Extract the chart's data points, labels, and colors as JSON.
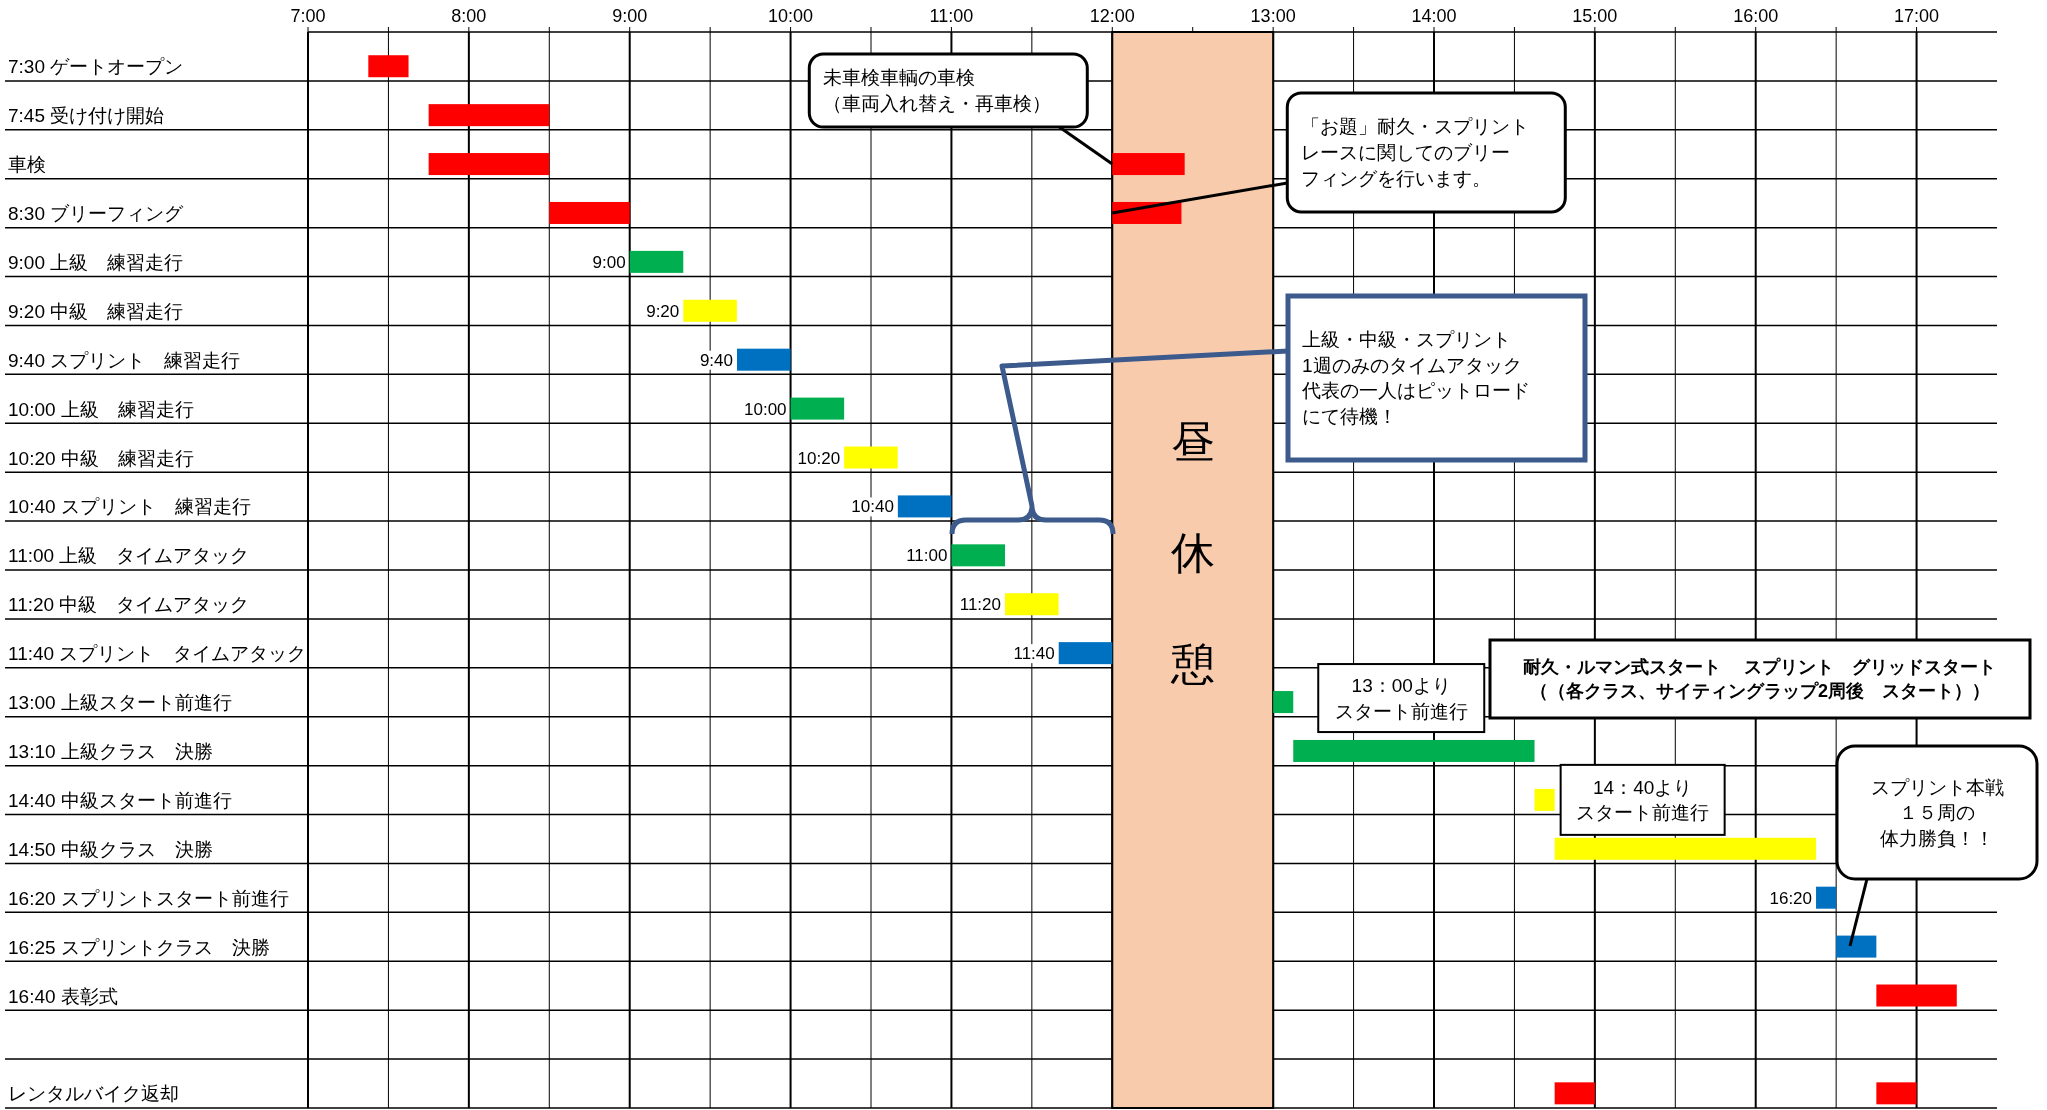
{
  "chart_data": {
    "type": "bar",
    "orientation": "horizontal",
    "grid": true,
    "categories": [
      "7:30 ゲートオープン",
      "7:45 受け付け開始",
      "車検",
      "8:30 ブリーフィング",
      "9:00 上級　練習走行",
      "9:20 中級　練習走行",
      "9:40 スプリント　練習走行",
      "10:00 上級　練習走行",
      "10:20 中級　練習走行",
      "10:40 スプリント　練習走行",
      "11:00 上級　タイムアタック",
      "11:20 中級　タイムアタック",
      "11:40 スプリント　タイムアタック",
      "13:00 上級スタート前進行",
      "13:10 上級クラス　決勝",
      "14:40 中級スタート前進行",
      "14:50 中級クラス　決勝",
      "16:20 スプリントスタート前進行",
      "16:25 スプリントクラス　決勝",
      "16:40 表彰式",
      null,
      "レンタルバイク返却"
    ],
    "xlim": [
      7,
      17.5
    ],
    "xticks": [
      {
        "value": 7,
        "label": "7:00"
      },
      {
        "value": 7.5,
        "label": null
      },
      {
        "value": 8,
        "label": "8:00"
      },
      {
        "value": 8.5,
        "label": null
      },
      {
        "value": 9,
        "label": "9:00"
      },
      {
        "value": 9.5,
        "label": null
      },
      {
        "value": 10,
        "label": "10:00"
      },
      {
        "value": 10.5,
        "label": null
      },
      {
        "value": 11,
        "label": "11:00"
      },
      {
        "value": 11.5,
        "label": null
      },
      {
        "value": 12,
        "label": "12:00"
      },
      {
        "value": 12.5,
        "label": null
      },
      {
        "value": 13,
        "label": "13:00"
      },
      {
        "value": 13.5,
        "label": null
      },
      {
        "value": 14,
        "label": "14:00"
      },
      {
        "value": 14.5,
        "label": null
      },
      {
        "value": 15,
        "label": "15:00"
      },
      {
        "value": 15.5,
        "label": null
      },
      {
        "value": 16,
        "label": "16:00"
      },
      {
        "value": 16.5,
        "label": null
      },
      {
        "value": 17,
        "label": "17:00"
      }
    ],
    "series": [
      {
        "color": "#ff0000",
        "base": [
          7.375,
          7.75,
          7.75,
          8.5,
          null,
          null,
          null,
          null,
          null,
          null,
          null,
          null,
          null,
          null,
          null,
          null,
          null,
          null,
          null,
          16.75,
          null,
          14.75
        ],
        "values": [
          0.25,
          0.75,
          0.75,
          0.5,
          null,
          null,
          null,
          null,
          null,
          null,
          null,
          null,
          null,
          null,
          null,
          null,
          null,
          null,
          null,
          0.5,
          null,
          0.25
        ]
      },
      {
        "color": "#ff0000",
        "base": [
          null,
          null,
          12,
          12,
          null,
          null,
          null,
          null,
          null,
          null,
          null,
          null,
          null,
          null,
          null,
          null,
          null,
          null,
          null,
          null,
          null,
          16.75
        ],
        "values": [
          null,
          null,
          0.45,
          0.43,
          null,
          null,
          null,
          null,
          null,
          null,
          null,
          null,
          null,
          null,
          null,
          null,
          null,
          null,
          null,
          null,
          null,
          0.25
        ]
      },
      {
        "color": "#00b050",
        "base": [
          null,
          null,
          null,
          null,
          9,
          null,
          null,
          10,
          null,
          null,
          11,
          null,
          null,
          13,
          13.125,
          null,
          null,
          null,
          null,
          null,
          null,
          null
        ],
        "values": [
          null,
          null,
          null,
          null,
          0.333,
          null,
          null,
          0.333,
          null,
          null,
          0.333,
          null,
          null,
          0.125,
          1.5,
          null,
          null,
          null,
          null,
          null,
          null,
          null
        ]
      },
      {
        "color": "#ffff00",
        "base": [
          null,
          null,
          null,
          null,
          null,
          9.333,
          null,
          null,
          10.333,
          null,
          null,
          11.333,
          null,
          null,
          null,
          14.625,
          14.75,
          null,
          null,
          null,
          null,
          null
        ],
        "values": [
          null,
          null,
          null,
          null,
          null,
          0.333,
          null,
          null,
          0.333,
          null,
          null,
          0.333,
          null,
          null,
          null,
          0.125,
          1.625,
          null,
          null,
          null,
          null,
          null
        ]
      },
      {
        "color": "#0070c0",
        "base": [
          null,
          null,
          null,
          null,
          null,
          null,
          9.667,
          null,
          null,
          10.667,
          null,
          null,
          11.667,
          null,
          null,
          null,
          null,
          16.375,
          16.5,
          null,
          null,
          null
        ],
        "values": [
          null,
          null,
          null,
          null,
          null,
          null,
          0.333,
          null,
          null,
          0.333,
          null,
          null,
          0.333,
          null,
          null,
          null,
          null,
          0.125,
          0.25,
          null,
          null,
          null
        ]
      }
    ],
    "bands": [
      {
        "axis": "x",
        "from": 12,
        "to": 13,
        "label": "昼休憩",
        "color": "#f8cbad"
      }
    ],
    "annotations": [
      {
        "text": "未車検車輌の車検（車両入れ替え・再車検）",
        "x": 12,
        "y": "車検"
      },
      {
        "text": "「お題」耐久・スプリントレースに関してのブリーフィングを行います。",
        "x": 12,
        "y": "8:30 ブリーフィング"
      },
      "上級・中級・スプリント1週のみのタイムアタック代表の一人はピットロードにて待機！",
      {
        "text": "13：00よりスタート前進行",
        "x": 13.125,
        "y": "13:00 上級スタート前進行"
      },
      "耐久・ルマン式スタート　 スプリント　グリッドスタート（（各クラス、サイティングラップ2周後　スタート））",
      {
        "text": "14：40よりスタート前進行",
        "x": 14.75,
        "y": "14:40 中級スタート前進行"
      },
      "スプリント本戦１５周の体力勝負！！",
      {
        "text": "9:00",
        "x": 9,
        "y": "9:00 上級　練習走行"
      },
      {
        "text": "9:20",
        "x": 9.333,
        "y": "9:20 中級　練習走行"
      },
      {
        "text": "9:40",
        "x": 9.667,
        "y": "9:40 スプリント　練習走行"
      },
      {
        "text": "10:00",
        "x": 10,
        "y": "10:00 上級　練習走行"
      },
      {
        "text": "10:20",
        "x": 10.333,
        "y": "10:20 中級　練習走行"
      },
      {
        "text": "10:40",
        "x": 10.667,
        "y": "10:40 スプリント　練習走行"
      },
      {
        "text": "11:00",
        "x": 11,
        "y": "11:00 上級　タイムアタック"
      },
      {
        "text": "11:20",
        "x": 11.333,
        "y": "11:20 中級　タイムアタック"
      },
      {
        "text": "11:40",
        "x": 11.667,
        "y": "11:40 スプリント　タイムアタック"
      },
      {
        "text": "16:20",
        "x": 16.375,
        "y": "16:20 スプリントスタート前進行"
      }
    ]
  }
}
